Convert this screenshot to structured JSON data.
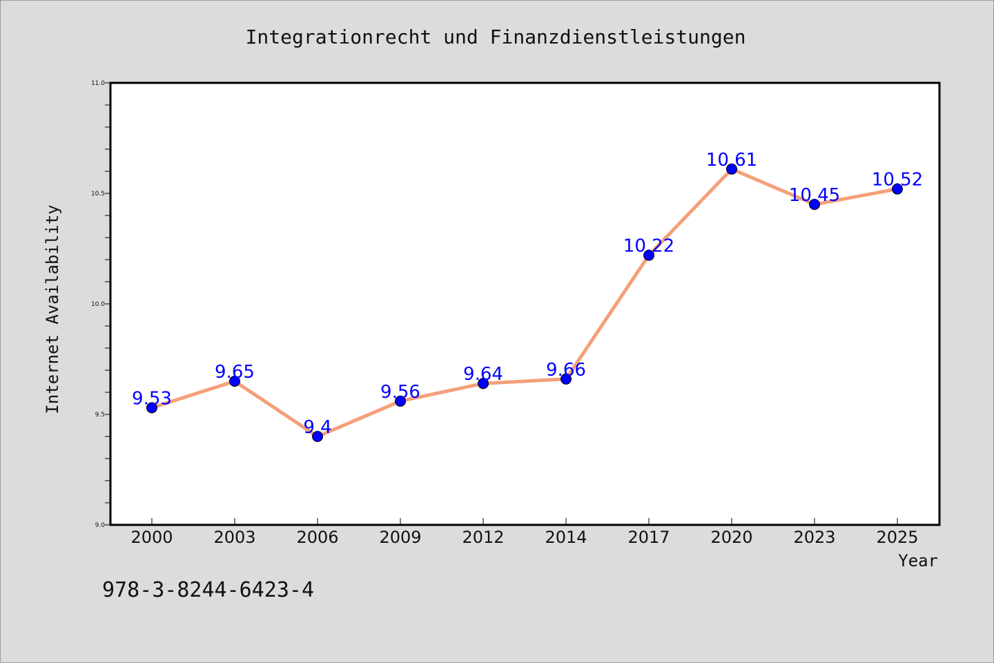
{
  "chart_data": {
    "type": "line",
    "title": "Integrationrecht und Finanzdienstleistungen",
    "xlabel": "Year",
    "ylabel": "Internet Availability",
    "categories": [
      "2000",
      "2003",
      "2006",
      "2009",
      "2012",
      "2014",
      "2017",
      "2020",
      "2023",
      "2025"
    ],
    "values": [
      9.53,
      9.65,
      9.4,
      9.56,
      9.64,
      9.66,
      10.22,
      10.61,
      10.45,
      10.52
    ],
    "data_labels": [
      "9.53",
      "9.65",
      "9.4",
      "9.56",
      "9.64",
      "9.66",
      "10.22",
      "10.61",
      "10.45",
      "10.52"
    ],
    "ylim": [
      9.0,
      11.0
    ],
    "yticks": [
      "9.0",
      "9.5",
      "10.0",
      "10.5",
      "11.0"
    ],
    "grid": false,
    "legend": "none",
    "colors": {
      "line": "#f4a07a",
      "marker": "#0000ff",
      "data_label": "#0000ff",
      "background": "#dcdcdc",
      "plot_area": "#ffffff"
    }
  },
  "footer": {
    "isbn": "978-3-8244-6423-4"
  }
}
